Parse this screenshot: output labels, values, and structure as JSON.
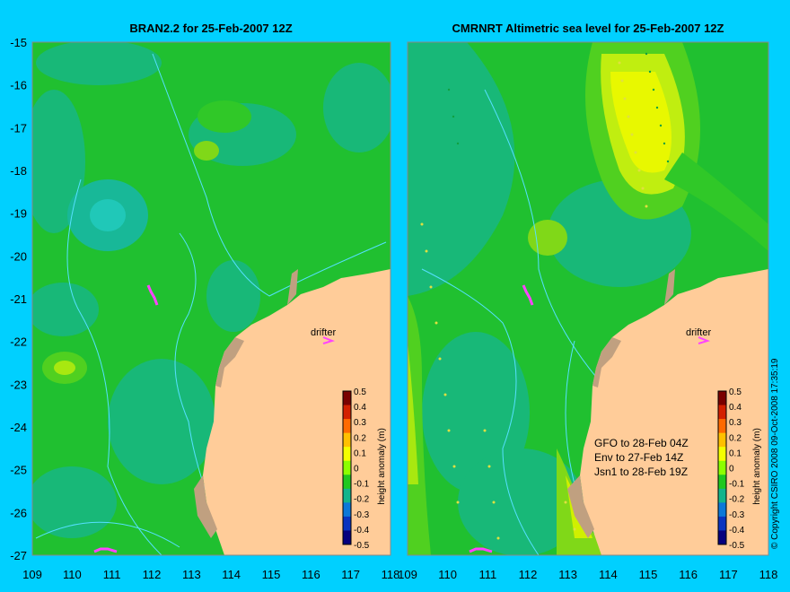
{
  "left_panel": {
    "title": "BRAN2.2 for 25-Feb-2007 12Z",
    "drifter_label": "drifter",
    "colorbar_label": "height anomaly (m)"
  },
  "right_panel": {
    "title": "CMRNRT Altimetric sea level  for 25-Feb-2007 12Z",
    "drifter_label": "drifter",
    "colorbar_label": "height anomaly (m)",
    "info_lines": [
      "GFO to 28-Feb 04Z",
      "Env to 27-Feb 14Z",
      "Jsn1 to 28-Feb 19Z"
    ]
  },
  "lat_ticks": [
    "-15",
    "-16",
    "-17",
    "-18",
    "-19",
    "-20",
    "-21",
    "-22",
    "-23",
    "-24",
    "-25",
    "-26",
    "-27"
  ],
  "lon_ticks": [
    "109",
    "110",
    "111",
    "112",
    "113",
    "114",
    "115",
    "116",
    "117",
    "118"
  ],
  "colorbar_ticks": [
    "0.5",
    "0.4",
    "0.3",
    "0.2",
    "0.1",
    "0",
    "-0.1",
    "-0.2",
    "-0.3",
    "-0.4",
    "-0.5"
  ],
  "colorbar_colors": [
    "#7a0000",
    "#d32000",
    "#ff6a00",
    "#ffc000",
    "#f4ff00",
    "#8cff00",
    "#1fc820",
    "#13b48c",
    "#0c78d8",
    "#0a34c0",
    "#06007e"
  ],
  "copyright": "© Copyright CSIRO 2008   09-Oct-2008 17:35:19",
  "colors": {
    "background": "#00d0ff",
    "land": "#ffcc99",
    "contour": "#55e0ff",
    "drifter": "#ff44ff"
  }
}
